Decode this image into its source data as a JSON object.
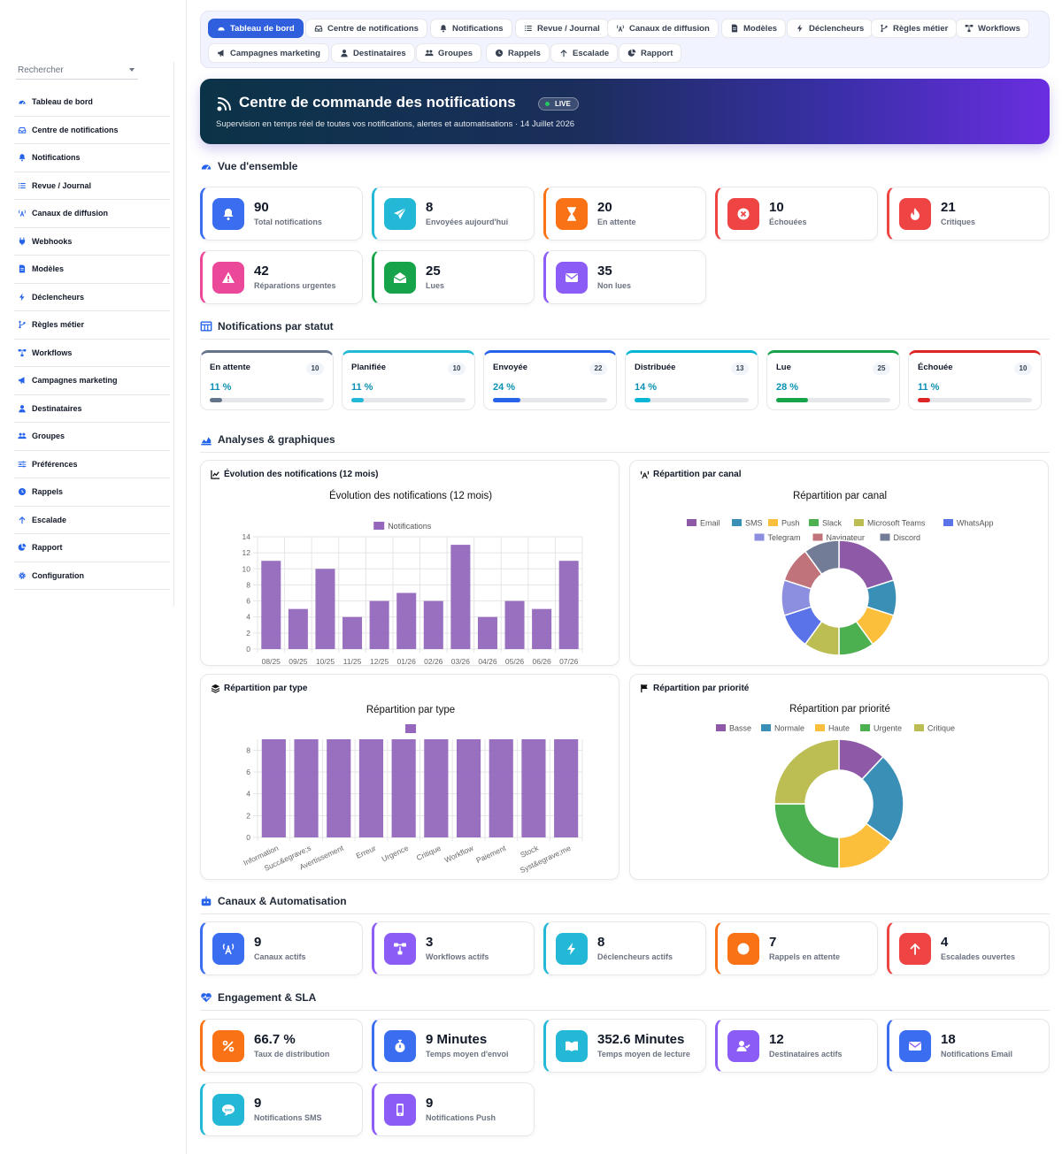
{
  "sidebar": {
    "search_placeholder": "Rechercher",
    "items": [
      {
        "label": "Tableau de bord",
        "icon": "gauge-icon"
      },
      {
        "label": "Centre de notifications",
        "icon": "inbox-icon"
      },
      {
        "label": "Notifications",
        "icon": "bell-icon"
      },
      {
        "label": "Revue / Journal",
        "icon": "list-icon"
      },
      {
        "label": "Canaux de diffusion",
        "icon": "broadcast-icon"
      },
      {
        "label": "Webhooks",
        "icon": "plug-icon"
      },
      {
        "label": "Modèles",
        "icon": "document-icon"
      },
      {
        "label": "Déclencheurs",
        "icon": "bolt-icon"
      },
      {
        "label": "Règles métier",
        "icon": "branch-icon"
      },
      {
        "label": "Workflows",
        "icon": "workflow-icon"
      },
      {
        "label": "Campagnes marketing",
        "icon": "megaphone-icon"
      },
      {
        "label": "Destinataires",
        "icon": "user-icon"
      },
      {
        "label": "Groupes",
        "icon": "users-icon"
      },
      {
        "label": "Préférences",
        "icon": "sliders-icon"
      },
      {
        "label": "Rappels",
        "icon": "clock-icon"
      },
      {
        "label": "Escalade",
        "icon": "arrow-up-icon"
      },
      {
        "label": "Rapport",
        "icon": "pie-icon"
      },
      {
        "label": "Configuration",
        "icon": "gear-icon"
      }
    ]
  },
  "tabs": [
    {
      "label": "Tableau de bord",
      "icon": "gauge-icon",
      "active": true
    },
    {
      "label": "Centre de notifications",
      "icon": "inbox-icon"
    },
    {
      "label": "Notifications",
      "icon": "bell-icon"
    },
    {
      "label": "Revue / Journal",
      "icon": "list-icon"
    },
    {
      "label": "Canaux de diffusion",
      "icon": "broadcast-icon"
    },
    {
      "label": "Modèles",
      "icon": "document-icon"
    },
    {
      "label": "Déclencheurs",
      "icon": "bolt-icon"
    },
    {
      "label": "Règles métier",
      "icon": "branch-icon"
    },
    {
      "label": "Workflows",
      "icon": "workflow-icon"
    },
    {
      "label": "Campagnes marketing",
      "icon": "megaphone-icon"
    },
    {
      "label": "Destinataires",
      "icon": "user-icon"
    },
    {
      "label": "Groupes",
      "icon": "users-icon"
    },
    {
      "label": "Rappels",
      "icon": "clock-icon"
    },
    {
      "label": "Escalade",
      "icon": "arrow-up-icon"
    },
    {
      "label": "Rapport",
      "icon": "pie-icon"
    }
  ],
  "hero": {
    "title": "Centre de commande des notifications",
    "badge": "LIVE",
    "subtitle": "Supervision en temps réel de toutes vos notifications, alertes et automatisations · 14 Juillet 2026"
  },
  "overview": {
    "title": "Vue d'ensemble",
    "cards": [
      {
        "value": "90",
        "label": "Total notifications",
        "color": "#3b6df0",
        "icon": "bell-icon"
      },
      {
        "value": "8",
        "label": "Envoyées aujourd'hui",
        "color": "#22b8d6",
        "icon": "send-icon"
      },
      {
        "value": "20",
        "label": "En attente",
        "color": "#f97316",
        "icon": "hourglass-icon"
      },
      {
        "value": "10",
        "label": "Échouées",
        "color": "#ef4444",
        "icon": "x-circle-icon"
      },
      {
        "value": "21",
        "label": "Critiques",
        "color": "#ef4444",
        "icon": "fire-icon"
      },
      {
        "value": "42",
        "label": "Réparations urgentes",
        "color": "#ec4899",
        "icon": "warning-icon"
      },
      {
        "value": "25",
        "label": "Lues",
        "color": "#16a34a",
        "icon": "envelope-open-icon"
      },
      {
        "value": "35",
        "label": "Non lues",
        "color": "#8b5cf6",
        "icon": "envelope-icon"
      }
    ]
  },
  "status": {
    "title": "Notifications par statut",
    "items": [
      {
        "name": "En attente",
        "count": "10",
        "pct": "11 %",
        "fraction": 0.11,
        "color": "#64748b"
      },
      {
        "name": "Planifiée",
        "count": "10",
        "pct": "11 %",
        "fraction": 0.11,
        "color": "#22b8d6"
      },
      {
        "name": "Envoyée",
        "count": "22",
        "pct": "24 %",
        "fraction": 0.24,
        "color": "#2563eb"
      },
      {
        "name": "Distribuée",
        "count": "13",
        "pct": "14 %",
        "fraction": 0.14,
        "color": "#06b6d4"
      },
      {
        "name": "Lue",
        "count": "25",
        "pct": "28 %",
        "fraction": 0.28,
        "color": "#16a34a"
      },
      {
        "name": "Échouée",
        "count": "10",
        "pct": "11 %",
        "fraction": 0.11,
        "color": "#dc2626"
      }
    ]
  },
  "analytics": {
    "title": "Analyses & graphiques",
    "card_titles": {
      "evolution": "Évolution des notifications (12 mois)",
      "canal": "Répartition par canal",
      "type": "Répartition par type",
      "priorite": "Répartition par priorité"
    }
  },
  "chart_data": [
    {
      "type": "bar",
      "title": "Évolution des notifications (12 mois)",
      "categories": [
        "08/25",
        "09/25",
        "10/25",
        "11/25",
        "12/25",
        "01/26",
        "02/26",
        "03/26",
        "04/26",
        "05/26",
        "06/26",
        "07/26"
      ],
      "series": [
        {
          "name": "Notifications",
          "values": [
            11,
            5,
            10,
            4,
            6,
            7,
            6,
            13,
            4,
            6,
            5,
            11
          ],
          "color": "#9467bd"
        }
      ],
      "ylim": [
        0,
        14
      ],
      "yticks": [
        0,
        2,
        4,
        6,
        8,
        10,
        12,
        14
      ],
      "legend": "top",
      "grid": true
    },
    {
      "type": "pie",
      "title": "Répartition par canal",
      "labels": [
        "Email",
        "SMS",
        "Push",
        "Slack",
        "Microsoft Teams",
        "WhatsApp",
        "Telegram",
        "Navigateur",
        "Discord"
      ],
      "values": [
        18,
        9,
        9,
        9,
        9,
        9,
        9,
        9,
        9
      ],
      "colors": [
        "#8e5aa8",
        "#3a8fb7",
        "#fbbf3c",
        "#4caf50",
        "#bcbd52",
        "#5b73e8",
        "#8c8fe0",
        "#c0737a",
        "#737c96"
      ],
      "legend": "top"
    },
    {
      "type": "bar",
      "title": "Répartition par type",
      "categories": [
        "Information",
        "Succ&egrave;s",
        "Avertissement",
        "Erreur",
        "Urgence",
        "Critique",
        "Workflow",
        "Paiement",
        "Stock",
        "Syst&egrave;me"
      ],
      "series": [
        {
          "values": [
            9,
            9,
            9,
            9,
            9,
            9,
            9,
            9,
            9,
            9
          ],
          "color": "#9467bd"
        }
      ],
      "ylim": [
        0,
        9
      ],
      "yticks": [
        0,
        2,
        4,
        6,
        8
      ],
      "legend": "top",
      "grid": true
    },
    {
      "type": "pie",
      "title": "Répartition par priorité",
      "labels": [
        "Basse",
        "Normale",
        "Haute",
        "Urgente",
        "Critique"
      ],
      "values": [
        12,
        23,
        15,
        25,
        25
      ],
      "colors": [
        "#8e5aa8",
        "#3a8fb7",
        "#fbbf3c",
        "#4caf50",
        "#bcbd52"
      ],
      "legend": "top"
    }
  ],
  "channels": {
    "title": "Canaux & Automatisation",
    "cards": [
      {
        "value": "9",
        "label": "Canaux actifs",
        "color": "#3b6df0",
        "icon": "broadcast-icon"
      },
      {
        "value": "3",
        "label": "Workflows actifs",
        "color": "#8b5cf6",
        "icon": "workflow-icon"
      },
      {
        "value": "8",
        "label": "Déclencheurs actifs",
        "color": "#22b8d6",
        "icon": "bolt-icon"
      },
      {
        "value": "7",
        "label": "Rappels en attente",
        "color": "#f97316",
        "icon": "clock-icon"
      },
      {
        "value": "4",
        "label": "Escalades ouvertes",
        "color": "#ef4444",
        "icon": "arrow-up-icon"
      }
    ]
  },
  "engagement": {
    "title": "Engagement & SLA",
    "cards": [
      {
        "value": "66.7 %",
        "label": "Taux de distribution",
        "color": "#f97316",
        "icon": "percent-icon"
      },
      {
        "value": "9 Minutes",
        "label": "Temps moyen d'envoi",
        "color": "#3b6df0",
        "icon": "stopwatch-icon"
      },
      {
        "value": "352.6 Minutes",
        "label": "Temps moyen de lecture",
        "color": "#22b8d6",
        "icon": "book-icon"
      },
      {
        "value": "12",
        "label": "Destinataires actifs",
        "color": "#8b5cf6",
        "icon": "user-check-icon"
      },
      {
        "value": "18",
        "label": "Notifications Email",
        "color": "#3b6df0",
        "icon": "envelope-icon"
      },
      {
        "value": "9",
        "label": "Notifications SMS",
        "color": "#22b8d6",
        "icon": "sms-icon"
      },
      {
        "value": "9",
        "label": "Notifications Push",
        "color": "#8b5cf6",
        "icon": "mobile-icon"
      }
    ]
  }
}
